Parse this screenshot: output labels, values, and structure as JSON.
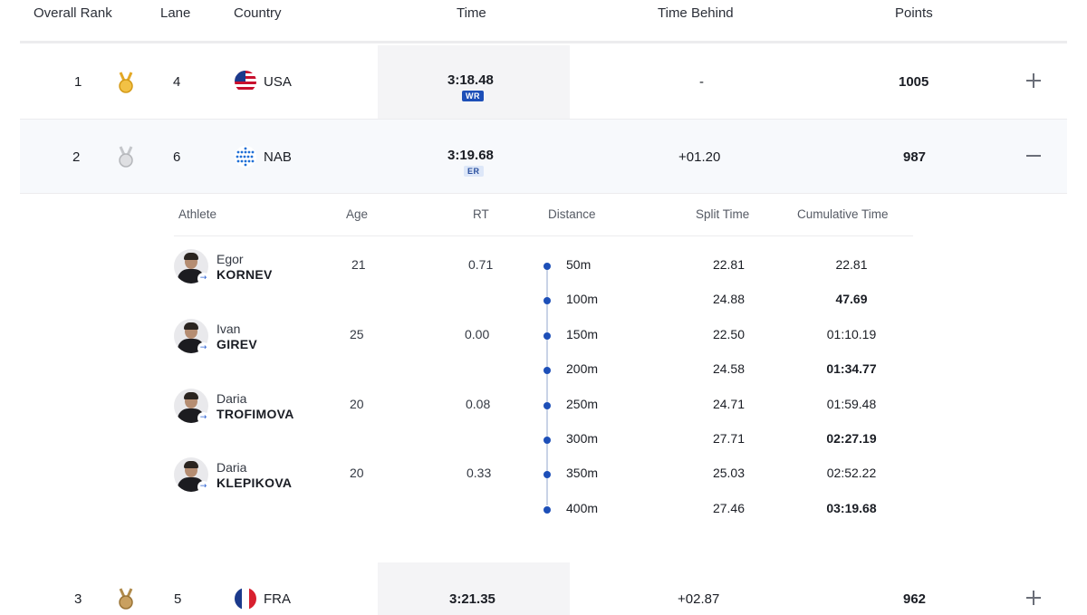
{
  "header": {
    "overall_rank": "Overall Rank",
    "lane": "Lane",
    "country": "Country",
    "time": "Time",
    "time_behind": "Time Behind",
    "points": "Points"
  },
  "rows": [
    {
      "rank": "1",
      "medal": "gold",
      "lane": "4",
      "country": "USA",
      "flag": "usa-flag",
      "time": "3:18.48",
      "record": "WR",
      "behind": "-",
      "points": "1005",
      "expanded": false
    },
    {
      "rank": "2",
      "medal": "silver",
      "lane": "6",
      "country": "NAB",
      "flag": "nab-flag",
      "time": "3:19.68",
      "record": "ER",
      "behind": "+01.20",
      "points": "987",
      "expanded": true
    },
    {
      "rank": "3",
      "medal": "bronze",
      "lane": "5",
      "country": "FRA",
      "flag": "france-flag",
      "time": "3:21.35",
      "record": "",
      "behind": "+02.87",
      "points": "962",
      "expanded": false
    }
  ],
  "detail": {
    "headers": {
      "athlete": "Athlete",
      "age": "Age",
      "rt": "RT",
      "distance": "Distance",
      "split_time": "Split Time",
      "cumulative_time": "Cumulative Time"
    },
    "athletes": [
      {
        "first": "Egor",
        "last": "KORNEV",
        "age": "21",
        "rt": "0.71"
      },
      {
        "first": "Ivan",
        "last": "GIREV",
        "age": "25",
        "rt": "0.00"
      },
      {
        "first": "Daria",
        "last": "TROFIMOVA",
        "age": "20",
        "rt": "0.08"
      },
      {
        "first": "Daria",
        "last": "KLEPIKOVA",
        "age": "20",
        "rt": "0.33"
      }
    ],
    "splits": [
      {
        "distance": "50m",
        "split": "22.81",
        "cumulative": "22.81",
        "bold": false
      },
      {
        "distance": "100m",
        "split": "24.88",
        "cumulative": "47.69",
        "bold": true
      },
      {
        "distance": "150m",
        "split": "22.50",
        "cumulative": "01:10.19",
        "bold": false
      },
      {
        "distance": "200m",
        "split": "24.58",
        "cumulative": "01:34.77",
        "bold": true
      },
      {
        "distance": "250m",
        "split": "24.71",
        "cumulative": "01:59.48",
        "bold": false
      },
      {
        "distance": "300m",
        "split": "27.71",
        "cumulative": "02:27.19",
        "bold": true
      },
      {
        "distance": "350m",
        "split": "25.03",
        "cumulative": "02:52.22",
        "bold": false
      },
      {
        "distance": "400m",
        "split": "27.46",
        "cumulative": "03:19.68",
        "bold": true
      }
    ]
  },
  "colors": {
    "accent": "#1d4fb8",
    "gold": "#e3a826",
    "silver": "#c4c6ca",
    "bronze": "#b08a4a"
  }
}
